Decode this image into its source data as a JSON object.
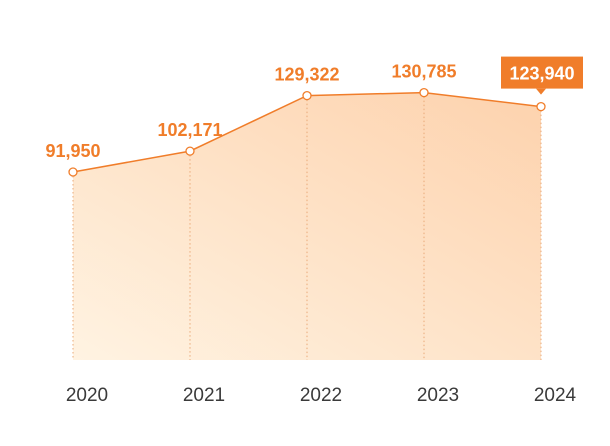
{
  "chart_data": {
    "type": "area",
    "categories": [
      "2020",
      "2021",
      "2022",
      "2023",
      "2024"
    ],
    "values": [
      91950,
      102171,
      129322,
      130785,
      123940
    ],
    "value_labels": [
      "91,950",
      "102,171",
      "129,322",
      "130,785",
      "123,940"
    ],
    "highlight_index": 4,
    "ylim": [
      0,
      160000
    ],
    "grid": false,
    "colors": {
      "accent": "#f07d2a",
      "highlight_bg": "#f07d2a",
      "highlight_text": "#ffffff",
      "fill_light": "#fff3e2",
      "fill_dark": "#fdd2ad",
      "dotted_line": "#e9a978",
      "marker_fill": "#ffffff"
    }
  }
}
